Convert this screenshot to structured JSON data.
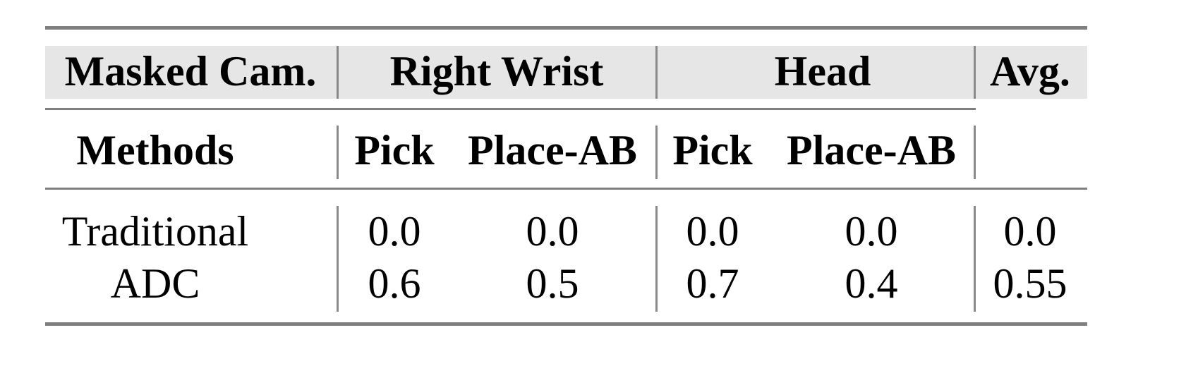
{
  "table": {
    "header_row1": {
      "masked_cam": "Masked Cam.",
      "right_wrist": "Right Wrist",
      "head": "Head",
      "avg": "Avg."
    },
    "header_row2": {
      "methods": "Methods",
      "rw_pick": "Pick",
      "rw_place": "Place-AB",
      "h_pick": "Pick",
      "h_place": "Place-AB"
    },
    "rows": [
      {
        "method": "Traditional",
        "rw_pick": "0.0",
        "rw_place": "0.0",
        "h_pick": "0.0",
        "h_place": "0.0",
        "avg": "0.0"
      },
      {
        "method": "ADC",
        "rw_pick": "0.6",
        "rw_place": "0.5",
        "h_pick": "0.7",
        "h_place": "0.4",
        "avg": "0.55"
      }
    ],
    "header_bg_color": "#e6e6e6",
    "rule_color": "#7f7f7f"
  }
}
